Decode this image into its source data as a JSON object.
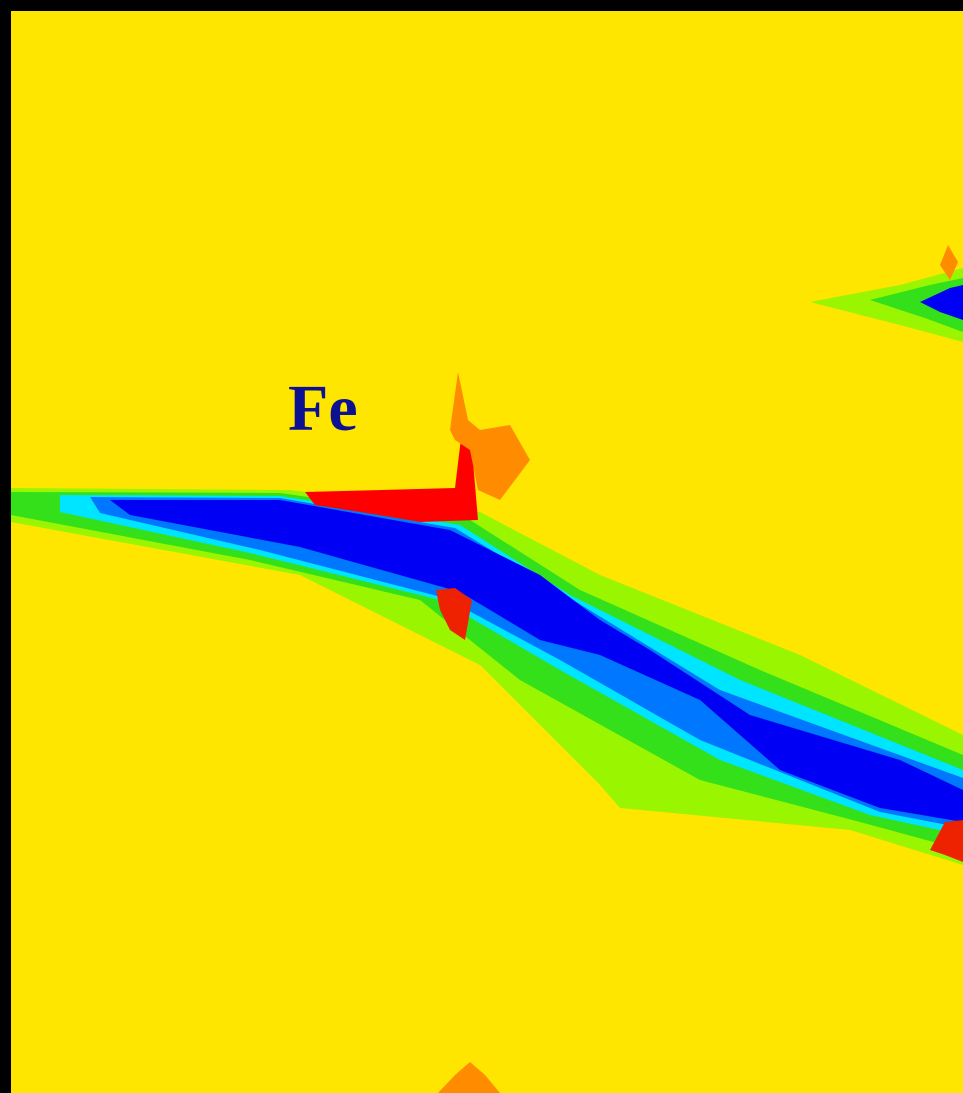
{
  "label": "Fe"
}
